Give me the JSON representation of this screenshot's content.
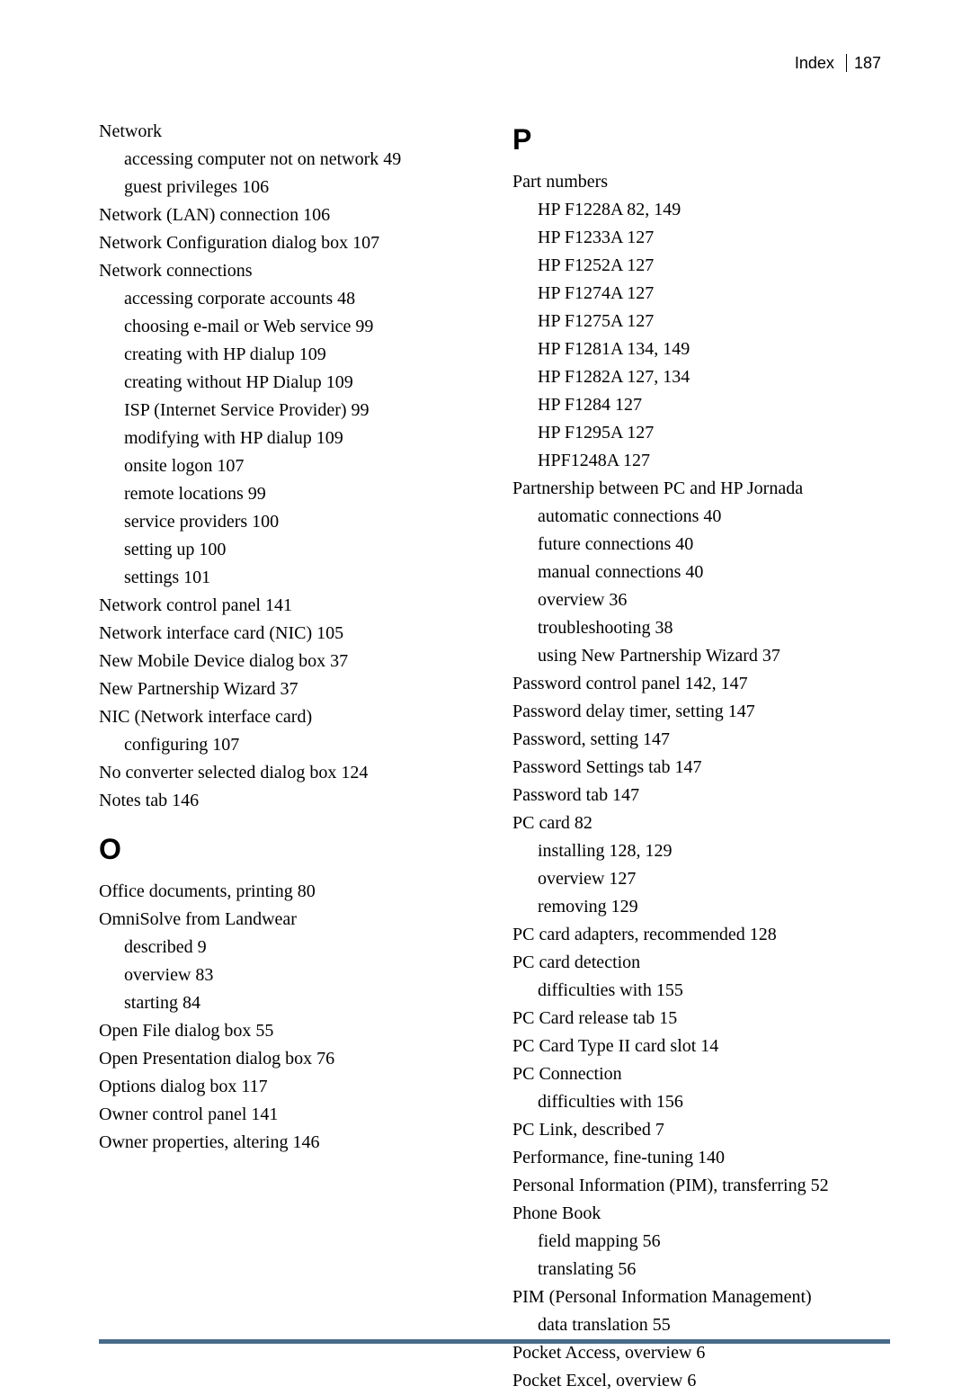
{
  "header": {
    "label": "Index",
    "page": "187"
  },
  "footer": {
    "line_color": "#4a6b8a"
  },
  "col1": {
    "n": {
      "e1": "Network",
      "e1s1": "accessing computer not on network  49",
      "e1s2": "guest privileges  106",
      "e2": "Network (LAN) connection  106",
      "e3": "Network Configuration dialog box 107",
      "e4": "Network connections",
      "e4s1": "accessing corporate accounts 48",
      "e4s2": "choosing e-mail or Web service 99",
      "e4s3": "creating with HP dialup  109",
      "e4s4": "creating without HP Dialup 109",
      "e4s5": "ISP (Internet Service Provider) 99",
      "e4s6": "modifying with HP dialup  109",
      "e4s7": "onsite logon  107",
      "e4s8": "remote locations  99",
      "e4s9": "service providers  100",
      "e4s10": "setting up  100",
      "e4s11": "settings  101",
      "e5": "Network control panel  141",
      "e6": "Network interface card (NIC) 105",
      "e7": "New Mobile Device dialog box  37",
      "e8": "New Partnership Wizard  37",
      "e9": "NIC (Network interface card)",
      "e9s1": "configuring  107",
      "e10": "No converter selected dialog box 124",
      "e11": "Notes tab  146"
    },
    "o": {
      "head": "O",
      "e1": "Office documents, printing  80",
      "e2": "OmniSolve from Landwear",
      "e2s1": "described  9",
      "e2s2": "overview  83",
      "e2s3": "starting  84",
      "e3": "Open File dialog box  55",
      "e4": "Open Presentation dialog box  76",
      "e5": "Options dialog box  117",
      "e6": "Owner control panel  141",
      "e7": "Owner properties, altering  146"
    }
  },
  "col2": {
    "p": {
      "head": "P",
      "e1": "Part numbers",
      "e1s1": "HP F1228A  82, 149",
      "e1s2": "HP F1233A  127",
      "e1s3": "HP F1252A  127",
      "e1s4": "HP F1274A  127",
      "e1s5": "HP F1275A  127",
      "e1s6": "HP F1281A  134, 149",
      "e1s7": "HP F1282A  127, 134",
      "e1s8": "HP F1284  127",
      "e1s9": "HP F1295A  127",
      "e1s10": "HPF1248A  127",
      "e2": "Partnership between PC and HP Jornada",
      "e2s1": "automatic connections  40",
      "e2s2": "future connections  40",
      "e2s3": "manual connections  40",
      "e2s4": "overview  36",
      "e2s5": "troubleshooting  38",
      "e2s6": "using New Partnership Wizard 37",
      "e3": "Password control panel  142, 147",
      "e4": "Password delay timer, setting  147",
      "e5": "Password, setting  147",
      "e6": "Password Settings tab  147",
      "e7": "Password tab  147",
      "e8": "PC card  82",
      "e8s1": "installing  128, 129",
      "e8s2": "overview  127",
      "e8s3": "removing  129",
      "e9": "PC card adapters, recommended 128",
      "e10": "PC card detection",
      "e10s1": "difficulties with  155",
      "e11": "PC Card release tab  15",
      "e12": "PC Card Type II card slot  14",
      "e13": "PC Connection",
      "e13s1": "difficulties with  156",
      "e14": "PC Link, described  7",
      "e15": "Performance, fine-tuning  140",
      "e16": "Personal Information (PIM), transferring  52",
      "e17": "Phone Book",
      "e17s1": "field mapping  56",
      "e17s2": "translating  56",
      "e18": "PIM (Personal Information Management)",
      "e18s1": "data translation  55",
      "e19": "Pocket Access, overview  6",
      "e20": "Pocket Excel, overview  6"
    }
  }
}
